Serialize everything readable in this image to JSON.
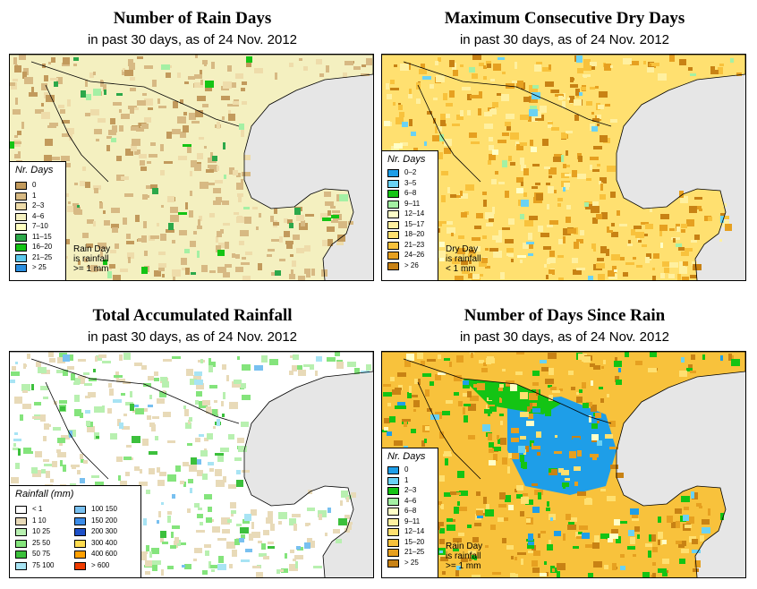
{
  "panels": [
    {
      "title": "Number of Rain Days",
      "subtitle": "in past 30 days, as of  24 Nov. 2012",
      "legend_title": "Nr. Days",
      "legend": [
        {
          "label": "0",
          "color": "#c29a5c"
        },
        {
          "label": "1",
          "color": "#d7b983"
        },
        {
          "label": "2–3",
          "color": "#eedcaa"
        },
        {
          "label": "4–6",
          "color": "#f4f0c0"
        },
        {
          "label": "7–10",
          "color": "#ffffc0"
        },
        {
          "label": "11–15",
          "color": "#2ca84a"
        },
        {
          "label": "16–20",
          "color": "#14c414"
        },
        {
          "label": "21–25",
          "color": "#5cc8ec"
        },
        {
          "label": "> 25",
          "color": "#2a8ee0"
        }
      ],
      "note": "Rain Day\nis rainfall\n>= 1 mm"
    },
    {
      "title": "Maximum Consecutive Dry Days",
      "subtitle": "in past 30 days, as of  24 Nov. 2012",
      "legend_title": "Nr. Days",
      "legend": [
        {
          "label": "0–2",
          "color": "#1e9ee8"
        },
        {
          "label": "3–5",
          "color": "#6ad2f4"
        },
        {
          "label": "6–8",
          "color": "#14c414"
        },
        {
          "label": "9–11",
          "color": "#a4f0a4"
        },
        {
          "label": "12–14",
          "color": "#ffffc8"
        },
        {
          "label": "15–17",
          "color": "#fff0a0"
        },
        {
          "label": "18–20",
          "color": "#ffe070"
        },
        {
          "label": "21–23",
          "color": "#f8c23c"
        },
        {
          "label": "24–26",
          "color": "#e6a020"
        },
        {
          "label": "> 26",
          "color": "#c88214"
        }
      ],
      "note": "Dry Day\nis rainfall\n< 1 mm"
    },
    {
      "title": "Total Accumulated Rainfall",
      "subtitle": "in past 30 days, as of  24 Nov. 2012",
      "legend_title": "Rainfall (mm)",
      "legend_left": [
        {
          "label": "<  1",
          "color": "#ffffff"
        },
        {
          "label": "1    10",
          "color": "#e8dab8"
        },
        {
          "label": "10    25",
          "color": "#b8f0b0"
        },
        {
          "label": "25    50",
          "color": "#84e47c"
        },
        {
          "label": "50    75",
          "color": "#3cc03c"
        },
        {
          "label": "75  100",
          "color": "#a8e4f4"
        }
      ],
      "legend_right": [
        {
          "label": "100  150",
          "color": "#78c0f0"
        },
        {
          "label": "150  200",
          "color": "#3c8ce8"
        },
        {
          "label": "200  300",
          "color": "#1e50c8"
        },
        {
          "label": "300  400",
          "color": "#ffdc50"
        },
        {
          "label": "400  600",
          "color": "#ffa000"
        },
        {
          "label": "> 600",
          "color": "#f03c00"
        }
      ]
    },
    {
      "title": "Number of Days Since Rain",
      "subtitle": "in past 30 days, as of  24 Nov. 2012",
      "legend_title": "Nr. Days",
      "legend": [
        {
          "label": "0",
          "color": "#1e9ee8"
        },
        {
          "label": "1",
          "color": "#6ad2f4"
        },
        {
          "label": "2–3",
          "color": "#14c414"
        },
        {
          "label": "4–6",
          "color": "#a4f0a4"
        },
        {
          "label": "6–8",
          "color": "#ffffc8"
        },
        {
          "label": "9–11",
          "color": "#fff0a0"
        },
        {
          "label": "12–14",
          "color": "#ffe070"
        },
        {
          "label": "15–20",
          "color": "#f8c23c"
        },
        {
          "label": "21–25",
          "color": "#e6a020"
        },
        {
          "label": "> 25",
          "color": "#c88214"
        }
      ],
      "note": "Rain Day\nis rainfall\n>= 1 mm"
    }
  ]
}
